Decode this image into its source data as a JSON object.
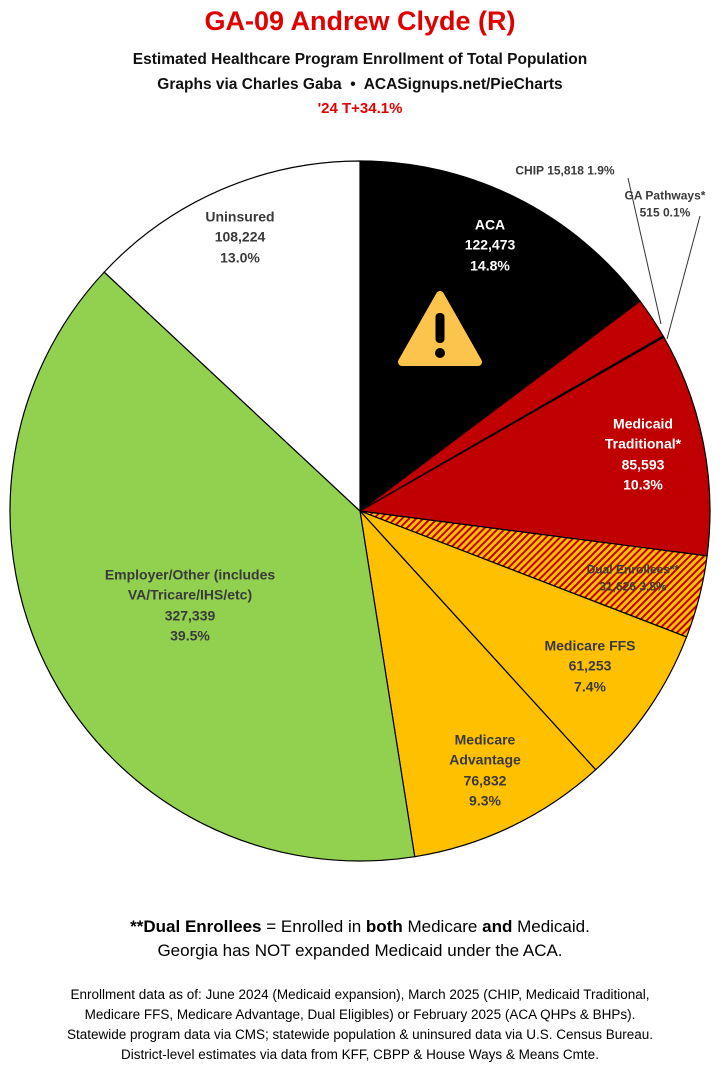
{
  "chart_data": {
    "type": "pie",
    "title": "GA-09 Andrew Clyde (R)",
    "subtitle": [
      "Estimated Healthcare Program Enrollment of Total Population",
      "Graphs via Charles Gaba  •  ACASignups.net/PieCharts"
    ],
    "annotation": "'24 T+34.1%",
    "categories": [
      "ACA",
      "CHIP",
      "GA Pathways*",
      "Medicaid Traditional*",
      "Dual Enrollees**",
      "Medicare FFS",
      "Medicare Advantage",
      "Employer/Other (includes VA/Tricare/IHS/etc)",
      "Uninsured"
    ],
    "values": [
      122473,
      15818,
      515,
      85593,
      31626,
      61253,
      76832,
      327339,
      108224
    ],
    "value_labels": [
      "122,473",
      "15,818",
      "515",
      "85,593",
      "31,626",
      "61,253",
      "76,832",
      "327,339",
      "108,224"
    ],
    "percents": [
      14.8,
      1.9,
      0.1,
      10.3,
      3.8,
      7.4,
      9.3,
      39.5,
      13.0
    ],
    "percent_labels": [
      "14.8%",
      "1.9%",
      "0.1%",
      "10.3%",
      "3.8%",
      "7.4%",
      "9.3%",
      "39.5%",
      "13.0%"
    ],
    "colors": [
      "#000000",
      "#c00000",
      "#c00000",
      "#c00000",
      "#ffc000",
      "#ffc000",
      "#ffc000",
      "#92d050",
      "#ffffff"
    ],
    "hatched": [
      false,
      false,
      false,
      false,
      true,
      false,
      false,
      false,
      false
    ],
    "hatch_color": "#c00000",
    "note": [
      [
        "**Dual Enrollees",
        " = Enrolled in ",
        "both",
        " Medicare ",
        "and",
        " Medicaid."
      ],
      "Georgia has NOT expanded Medicaid under the ACA."
    ],
    "source": [
      "Enrollment data as of: June 2024 (Medicaid expansion), March 2025 (CHIP, Medicaid Traditional,",
      "Medicare FFS, Medicare Advantage, Dual Eligibles) or February 2025 (ACA QHPs & BHPs).",
      "Statewide program data via CMS; statewide population & uninsured data via U.S. Census Bureau.",
      "District-level estimates via data from KFF, CBPP & House Ways & Means Cmte."
    ]
  }
}
